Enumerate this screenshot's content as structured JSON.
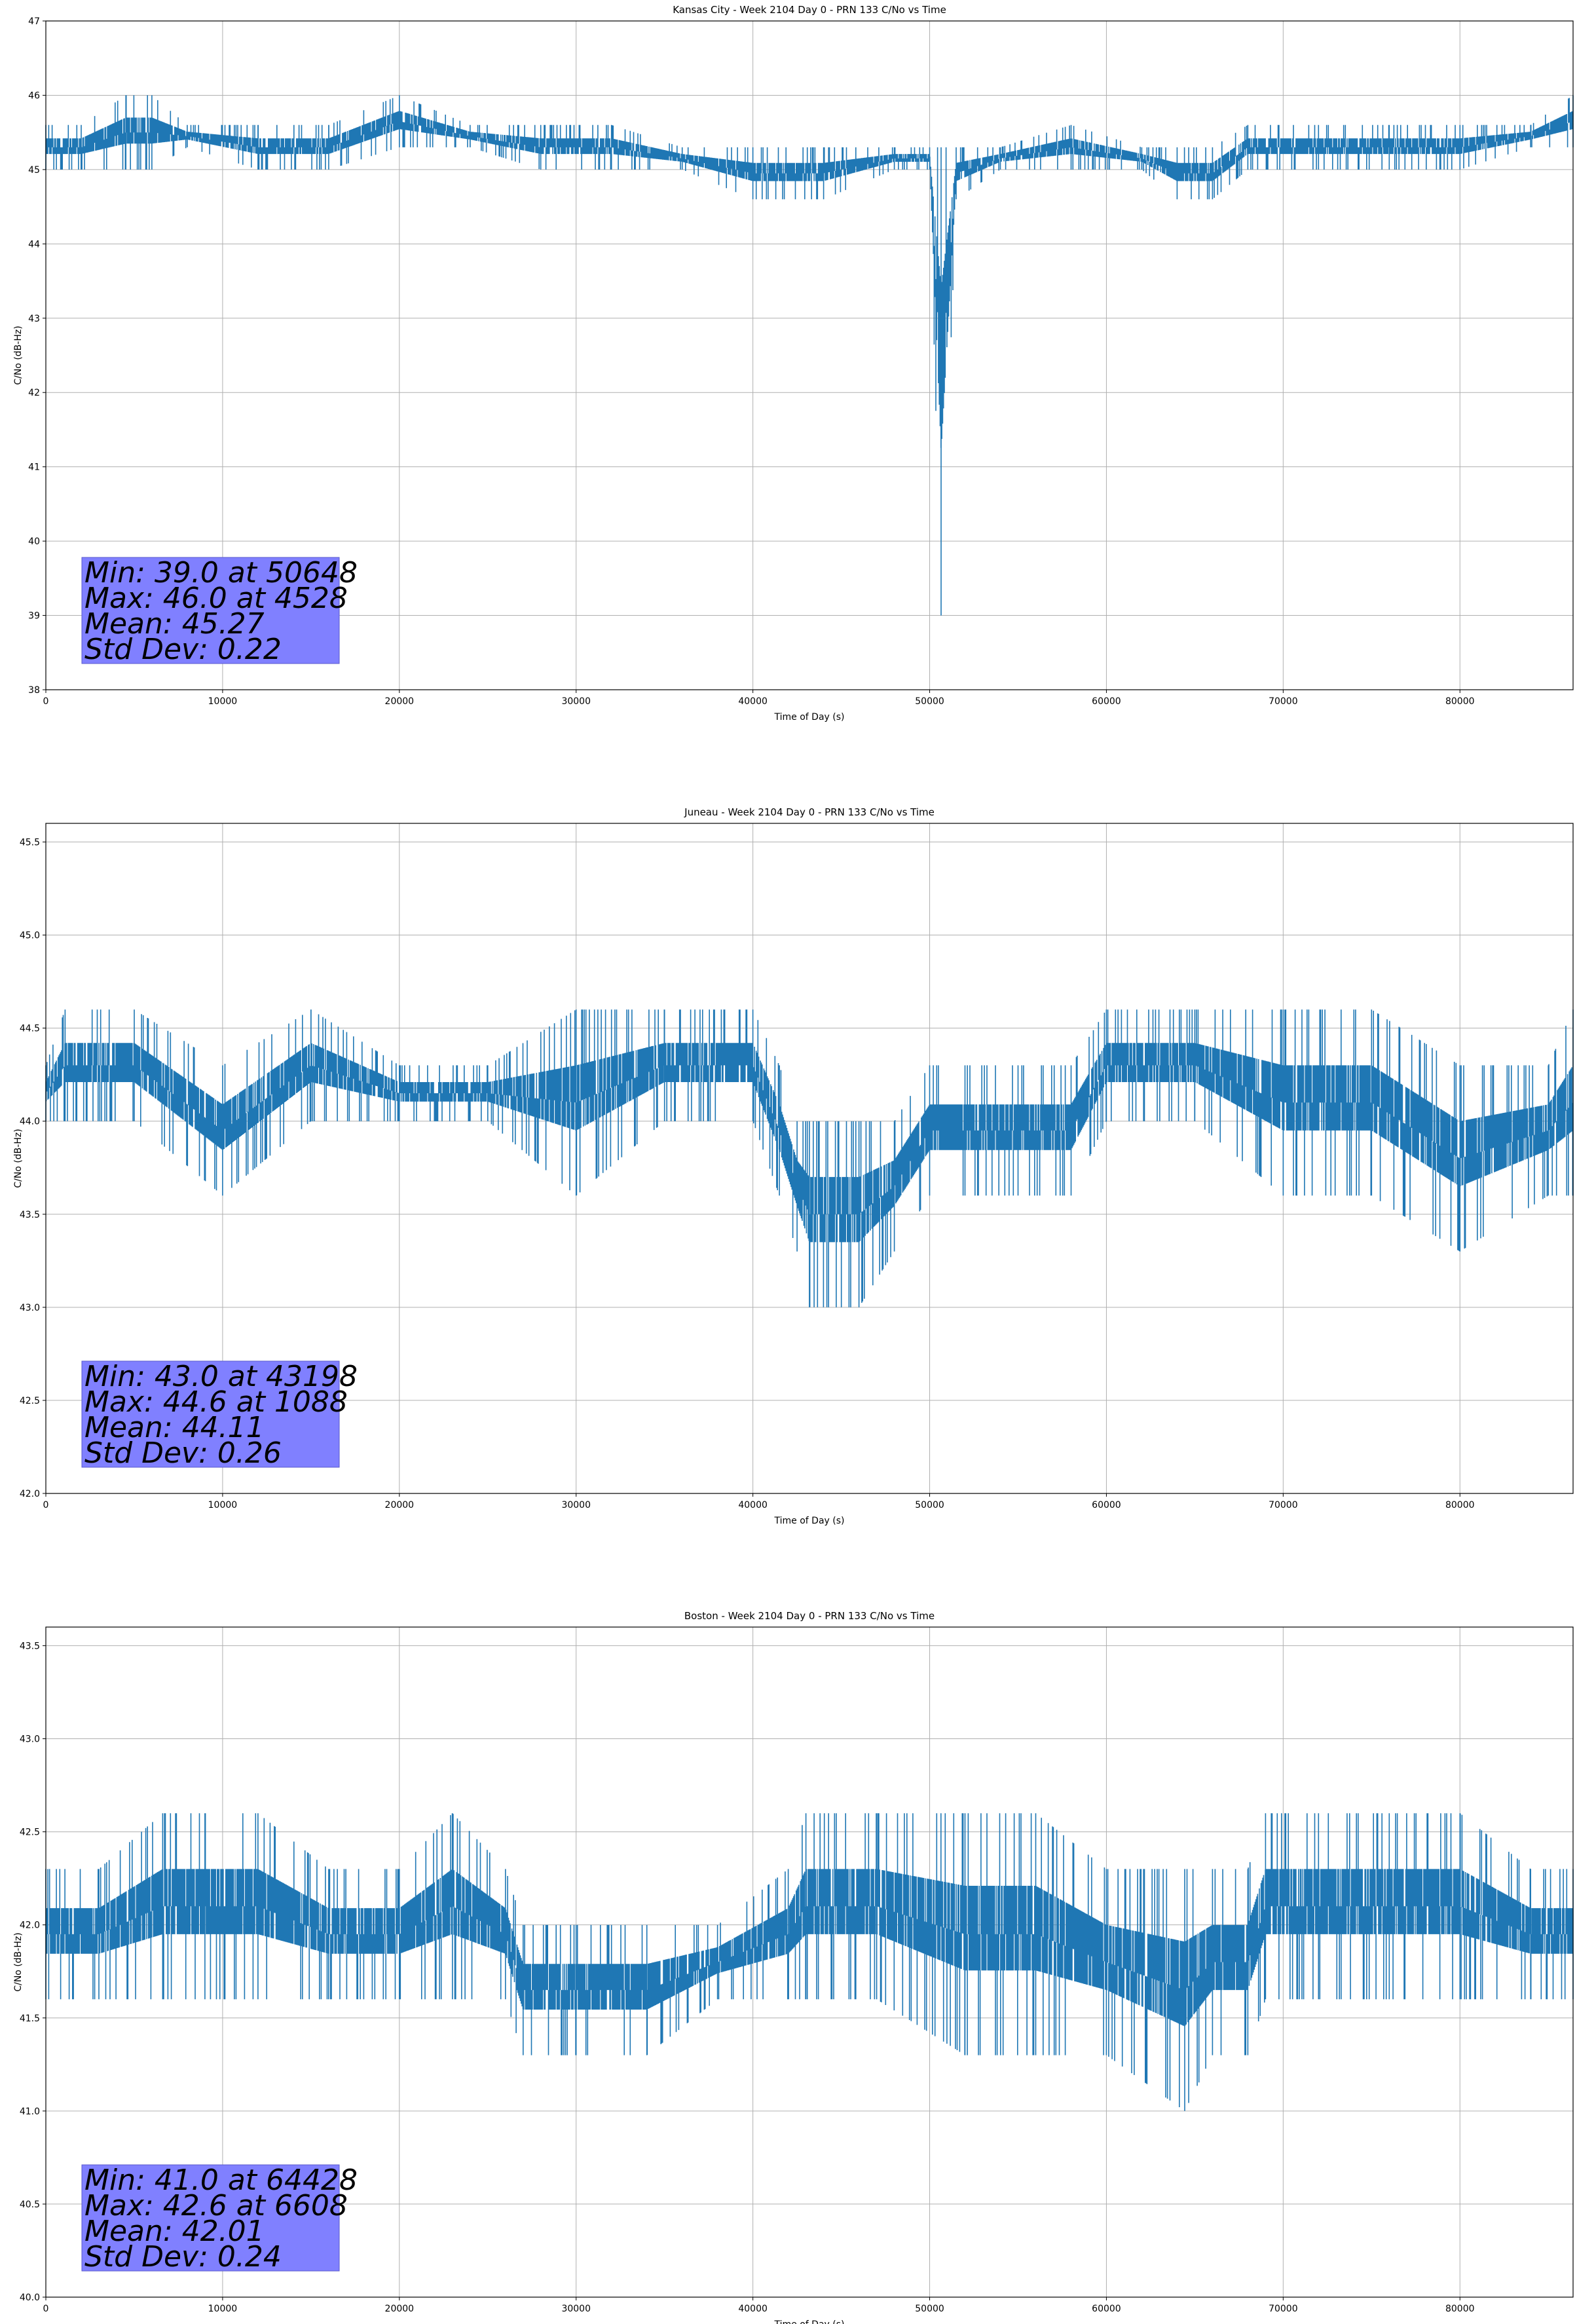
{
  "chart_data": [
    {
      "type": "line",
      "title": "Kansas City - Week 2104 Day 0 - PRN 133 C/No vs Time",
      "xlabel": "Time of Day (s)",
      "ylabel": "C/No (dB-Hz)",
      "xlim": [
        0,
        86400
      ],
      "ylim": [
        38,
        47
      ],
      "xticks": [
        0,
        10000,
        20000,
        30000,
        40000,
        50000,
        60000,
        70000,
        80000
      ],
      "yticks": [
        "38",
        "39",
        "40",
        "41",
        "42",
        "43",
        "44",
        "45",
        "46",
        "47"
      ],
      "grid": true,
      "line_color": "#1f77b4",
      "series": [
        {
          "x": [
            0,
            2000,
            4528,
            6000,
            8000,
            12000,
            16000,
            20000,
            24000,
            28000,
            32000,
            36000,
            40000,
            44000,
            48000,
            50000,
            50648,
            51500,
            54000,
            58000,
            62000,
            64000,
            66000,
            68000,
            72000,
            76000,
            80000,
            84000,
            86400
          ],
          "low": [
            45.0,
            45.0,
            45.0,
            45.0,
            45.3,
            45.0,
            45.0,
            45.3,
            45.3,
            45.0,
            45.0,
            45.0,
            44.6,
            44.6,
            45.0,
            45.0,
            39.0,
            44.6,
            45.0,
            45.0,
            45.0,
            44.6,
            44.6,
            45.0,
            45.0,
            45.0,
            45.0,
            45.3,
            45.3
          ],
          "high": [
            45.6,
            45.6,
            46.0,
            46.0,
            45.6,
            45.6,
            45.6,
            46.0,
            45.6,
            45.6,
            45.6,
            45.3,
            45.3,
            45.3,
            45.3,
            45.3,
            45.3,
            45.3,
            45.3,
            45.6,
            45.3,
            45.3,
            45.3,
            45.6,
            45.6,
            45.6,
            45.6,
            45.6,
            46.0
          ]
        }
      ],
      "stats": [
        "Min: 39.0 at 50648",
        "Max: 46.0 at 4528",
        "Mean: 45.27",
        "Std Dev: 0.22"
      ]
    },
    {
      "type": "line",
      "title": "Juneau - Week 2104 Day 0 - PRN 133 C/No vs Time",
      "xlabel": "Time of Day (s)",
      "ylabel": "C/No (dB-Hz)",
      "xlim": [
        0,
        86400
      ],
      "ylim": [
        42.0,
        45.6
      ],
      "xticks": [
        0,
        10000,
        20000,
        30000,
        40000,
        50000,
        60000,
        70000,
        80000
      ],
      "yticks": [
        "42.0",
        "42.5",
        "43.0",
        "43.5",
        "44.0",
        "44.5",
        "45.0",
        "45.5"
      ],
      "grid": true,
      "line_color": "#1f77b4",
      "series": [
        {
          "x": [
            0,
            1088,
            5000,
            10000,
            15000,
            20000,
            25000,
            30000,
            35000,
            40000,
            41500,
            42500,
            43198,
            46000,
            48000,
            50000,
            52000,
            55000,
            58000,
            60000,
            65000,
            70000,
            75000,
            80000,
            85000,
            86400
          ],
          "low": [
            44.0,
            44.0,
            44.0,
            43.6,
            44.0,
            44.0,
            44.0,
            43.6,
            44.0,
            44.0,
            43.6,
            43.3,
            43.0,
            43.0,
            43.3,
            43.6,
            43.6,
            43.6,
            43.6,
            44.0,
            44.0,
            43.6,
            43.6,
            43.3,
            43.6,
            43.6
          ],
          "high": [
            44.3,
            44.6,
            44.6,
            44.3,
            44.6,
            44.3,
            44.3,
            44.6,
            44.6,
            44.6,
            44.3,
            44.0,
            44.0,
            44.0,
            44.0,
            44.3,
            44.3,
            44.3,
            44.3,
            44.6,
            44.6,
            44.6,
            44.6,
            44.3,
            44.3,
            44.6
          ]
        }
      ],
      "stats": [
        "Min: 43.0 at 43198",
        "Max: 44.6 at 1088",
        "Mean: 44.11",
        "Std Dev: 0.26"
      ]
    },
    {
      "type": "line",
      "title": "Boston - Week 2104 Day 0 - PRN 133 C/No vs Time",
      "xlabel": "Time of Day (s)",
      "ylabel": "C/No (dB-Hz)",
      "xlim": [
        0,
        86400
      ],
      "ylim": [
        40.0,
        43.6
      ],
      "xticks": [
        0,
        10000,
        20000,
        30000,
        40000,
        50000,
        60000,
        70000,
        80000
      ],
      "yticks": [
        "40.0",
        "40.5",
        "41.0",
        "41.5",
        "42.0",
        "42.5",
        "43.0",
        "43.5"
      ],
      "grid": true,
      "line_color": "#1f77b4",
      "series": [
        {
          "x": [
            0,
            3000,
            6608,
            9000,
            12000,
            16000,
            20000,
            23000,
            26000,
            27000,
            30000,
            34000,
            38000,
            42000,
            43000,
            47000,
            52000,
            56000,
            60000,
            64428,
            66000,
            68000,
            69000,
            72000,
            76000,
            80000,
            84000,
            86400
          ],
          "low": [
            41.6,
            41.6,
            41.6,
            41.6,
            41.6,
            41.6,
            41.6,
            41.6,
            41.6,
            41.3,
            41.3,
            41.3,
            41.6,
            41.6,
            41.6,
            41.6,
            41.3,
            41.3,
            41.3,
            41.0,
            41.3,
            41.3,
            41.6,
            41.6,
            41.6,
            41.6,
            41.6,
            41.6
          ],
          "high": [
            42.3,
            42.3,
            42.6,
            42.6,
            42.6,
            42.3,
            42.3,
            42.6,
            42.3,
            42.0,
            42.0,
            42.0,
            42.0,
            42.3,
            42.6,
            42.6,
            42.6,
            42.6,
            42.3,
            42.3,
            42.3,
            42.3,
            42.6,
            42.6,
            42.6,
            42.6,
            42.3,
            42.3
          ]
        }
      ],
      "stats": [
        "Min: 41.0 at 64428",
        "Max: 42.6 at 6608",
        "Mean: 42.01",
        "Std Dev: 0.24"
      ]
    }
  ]
}
